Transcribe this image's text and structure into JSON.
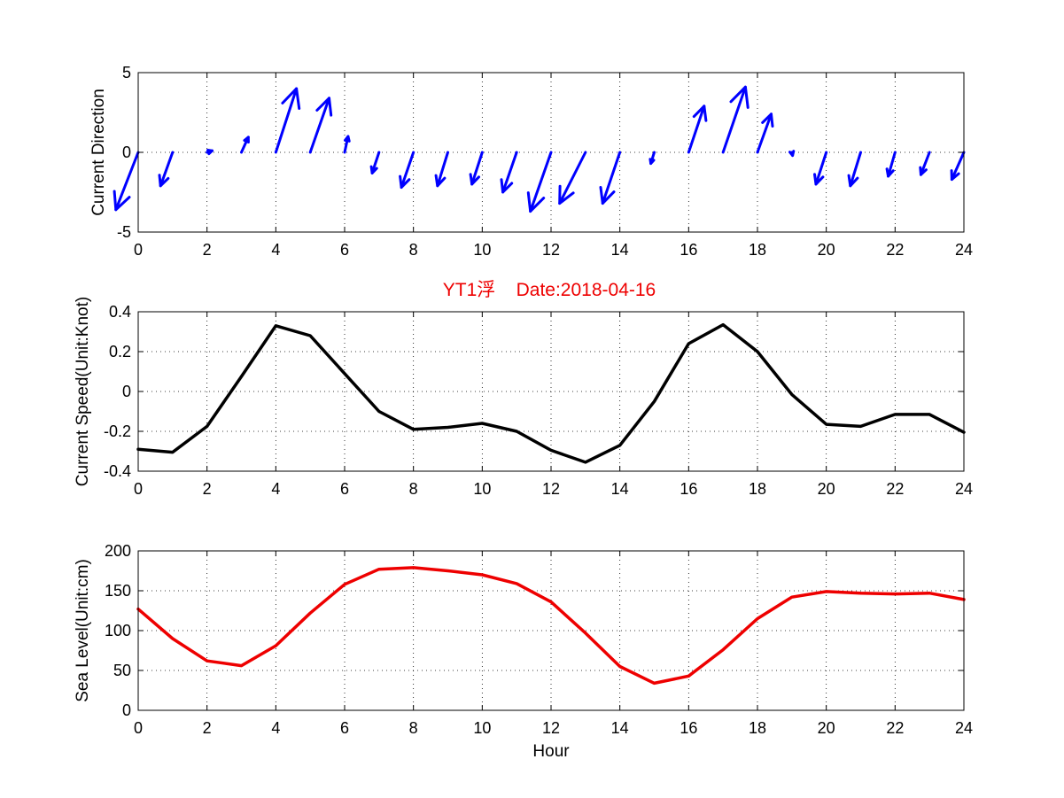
{
  "title": "YT1浮    Date:2018-04-16",
  "chart_data": [
    {
      "type": "quiver",
      "ylabel": "Current Direction",
      "xlabel": "",
      "xlim": [
        0,
        24
      ],
      "ylim": [
        -5,
        5
      ],
      "xticks": [
        0,
        2,
        4,
        6,
        8,
        10,
        12,
        14,
        16,
        18,
        20,
        22,
        24
      ],
      "yticks": [
        -5,
        0,
        5
      ],
      "grid": true,
      "color": "#0000ff",
      "x": [
        0,
        1,
        2,
        3,
        4,
        5,
        6,
        7,
        8,
        9,
        10,
        11,
        12,
        13,
        14,
        15,
        16,
        17,
        18,
        19,
        20,
        21,
        22,
        23,
        24
      ],
      "u": [
        -0.65,
        -0.35,
        0.15,
        0.2,
        0.6,
        0.55,
        0.1,
        -0.2,
        -0.35,
        -0.3,
        -0.3,
        -0.4,
        -0.6,
        -0.75,
        -0.5,
        -0.1,
        0.45,
        0.65,
        0.4,
        0.02,
        -0.3,
        -0.3,
        -0.2,
        -0.25,
        -0.35
      ],
      "v": [
        -3.6,
        -2.1,
        0.1,
        0.95,
        4.0,
        3.4,
        1.0,
        -1.3,
        -2.2,
        -2.1,
        -2.0,
        -2.5,
        -3.7,
        -3.2,
        -3.2,
        -0.7,
        2.9,
        4.1,
        2.4,
        -0.2,
        -2.0,
        -2.1,
        -1.5,
        -1.4,
        -1.7
      ]
    },
    {
      "type": "line",
      "ylabel": "Current Speed(Unit:Knot)",
      "xlabel": "",
      "xlim": [
        0,
        24
      ],
      "ylim": [
        -0.4,
        0.4
      ],
      "xticks": [
        0,
        2,
        4,
        6,
        8,
        10,
        12,
        14,
        16,
        18,
        20,
        22,
        24
      ],
      "yticks": [
        -0.4,
        -0.2,
        0,
        0.2,
        0.4
      ],
      "grid": true,
      "color": "#000000",
      "x": [
        0,
        1,
        2,
        3,
        4,
        5,
        6,
        7,
        8,
        9,
        10,
        11,
        12,
        13,
        14,
        15,
        16,
        17,
        18,
        19,
        20,
        21,
        22,
        23,
        24
      ],
      "y": [
        -0.29,
        -0.305,
        -0.175,
        0.075,
        0.33,
        0.28,
        0.09,
        -0.1,
        -0.19,
        -0.18,
        -0.16,
        -0.2,
        -0.295,
        -0.355,
        -0.27,
        -0.05,
        0.24,
        0.335,
        0.2,
        -0.015,
        -0.165,
        -0.175,
        -0.115,
        -0.115,
        -0.205
      ]
    },
    {
      "type": "line",
      "ylabel": "Sea Level(Unit:cm)",
      "xlabel": "Hour",
      "xlim": [
        0,
        24
      ],
      "ylim": [
        0,
        200
      ],
      "xticks": [
        0,
        2,
        4,
        6,
        8,
        10,
        12,
        14,
        16,
        18,
        20,
        22,
        24
      ],
      "yticks": [
        0,
        50,
        100,
        150,
        200
      ],
      "grid": true,
      "color": "#ee0000",
      "x": [
        0,
        1,
        2,
        3,
        4,
        5,
        6,
        7,
        8,
        9,
        10,
        11,
        12,
        13,
        14,
        15,
        16,
        17,
        18,
        19,
        20,
        21,
        22,
        23,
        24
      ],
      "y": [
        127,
        90,
        62,
        56,
        81,
        122,
        158,
        177,
        179,
        175,
        170,
        159,
        136,
        97,
        55,
        34,
        43,
        76,
        115,
        142,
        149,
        147,
        146,
        147,
        139
      ]
    }
  ]
}
